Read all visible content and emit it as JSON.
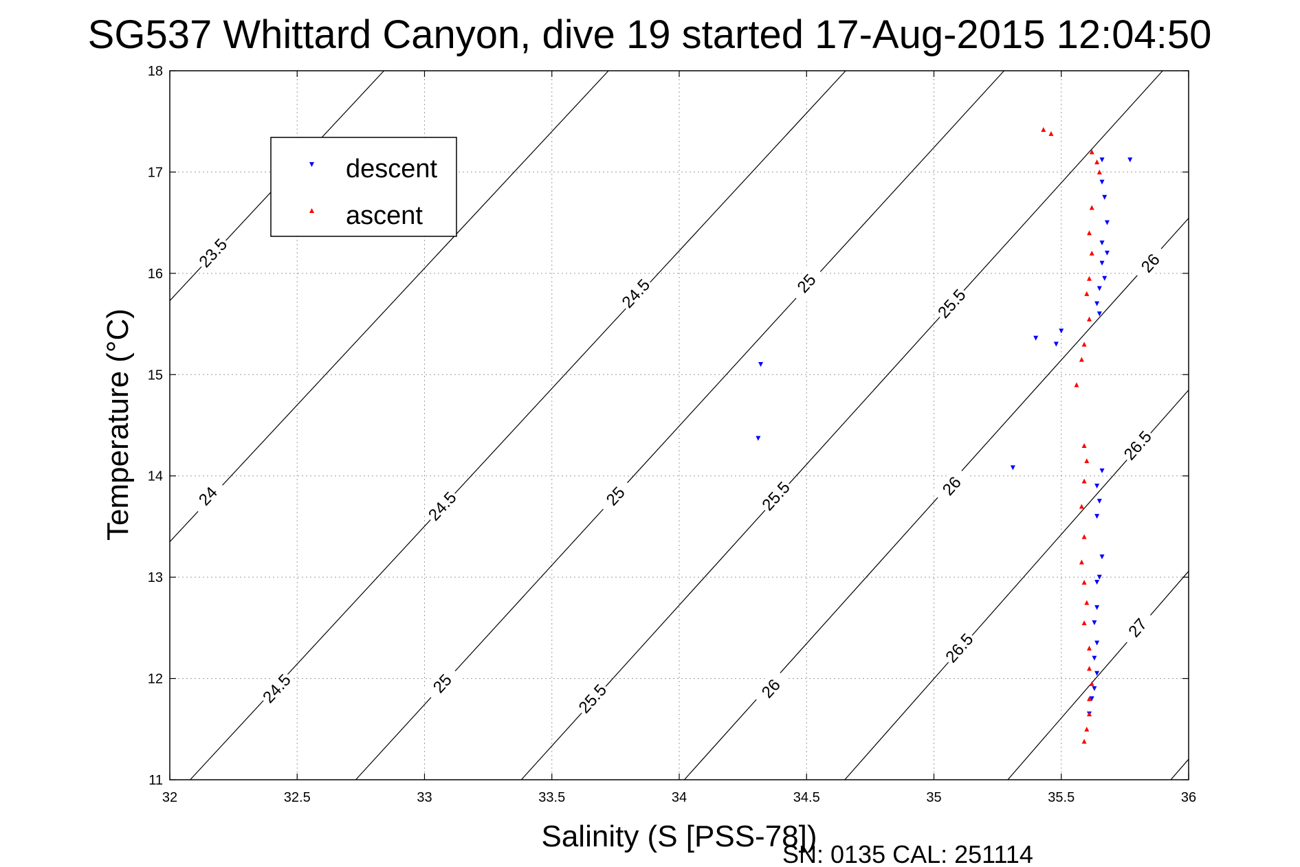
{
  "chart_data": {
    "type": "scatter",
    "title": "SG537 Whittard Canyon, dive 19 started 17-Aug-2015 12:04:50",
    "xlabel": "Salinity (S [PSS-78])",
    "ylabel": "Temperature (°C)",
    "xlim": [
      32,
      36
    ],
    "ylim": [
      11,
      18
    ],
    "xticks": [
      32,
      32.5,
      33,
      33.5,
      34,
      34.5,
      35,
      35.5,
      36
    ],
    "yticks": [
      11,
      12,
      13,
      14,
      15,
      16,
      17,
      18
    ],
    "xtick_labels": [
      "32",
      "32.5",
      "33",
      "33.5",
      "34",
      "34.5",
      "35",
      "35.5",
      "36"
    ],
    "ytick_labels": [
      "11",
      "12",
      "13",
      "14",
      "15",
      "16",
      "17",
      "18"
    ],
    "grid": true,
    "legend_position": "top-left",
    "density_contours": [
      {
        "value": "23.5",
        "slope": 2.7,
        "x0": 32.0,
        "y0": 15.73,
        "labels": [
          {
            "x": 32.17,
            "y": 16.2
          }
        ]
      },
      {
        "value": "24",
        "slope": 2.7,
        "x0": 32.0,
        "y0": 13.35,
        "labels": [
          {
            "x": 32.15,
            "y": 13.8
          }
        ]
      },
      {
        "value": "24.5",
        "slope": 2.72,
        "x0": 32.08,
        "y0": 11.0,
        "labels": [
          {
            "x": 32.42,
            "y": 11.9
          },
          {
            "x": 33.07,
            "y": 13.7
          },
          {
            "x": 33.83,
            "y": 15.8
          },
          {
            "x": 35.2,
            "y": 19.5
          }
        ]
      },
      {
        "value": "25",
        "slope": 2.75,
        "x0": 32.73,
        "y0": 11.0,
        "labels": [
          {
            "x": 33.07,
            "y": 11.95
          },
          {
            "x": 33.75,
            "y": 13.8
          },
          {
            "x": 34.5,
            "y": 15.9
          }
        ]
      },
      {
        "value": "25.5",
        "slope": 2.78,
        "x0": 33.38,
        "y0": 11.0,
        "labels": [
          {
            "x": 33.66,
            "y": 11.8
          },
          {
            "x": 34.38,
            "y": 13.8
          },
          {
            "x": 35.07,
            "y": 15.7
          }
        ]
      },
      {
        "value": "26",
        "slope": 2.8,
        "x0": 34.02,
        "y0": 11.0,
        "labels": [
          {
            "x": 34.36,
            "y": 11.9
          },
          {
            "x": 35.07,
            "y": 13.9
          },
          {
            "x": 35.85,
            "y": 16.1
          }
        ]
      },
      {
        "value": "26.5",
        "slope": 2.85,
        "x0": 34.65,
        "y0": 11.0,
        "labels": [
          {
            "x": 35.1,
            "y": 12.3
          },
          {
            "x": 35.8,
            "y": 14.3
          }
        ]
      },
      {
        "value": "27",
        "slope": 2.9,
        "x0": 35.29,
        "y0": 11.0,
        "labels": [
          {
            "x": 35.8,
            "y": 12.5
          }
        ]
      },
      {
        "value": "",
        "slope": 2.9,
        "x0": 35.93,
        "y0": 11.0,
        "labels": []
      }
    ],
    "series": [
      {
        "name": "descent",
        "color": "#0000ff",
        "marker": "triangle-down",
        "points": [
          [
            35.66,
            17.12
          ],
          [
            35.77,
            17.12
          ],
          [
            35.66,
            16.9
          ],
          [
            35.67,
            16.75
          ],
          [
            35.68,
            16.5
          ],
          [
            35.66,
            16.3
          ],
          [
            35.68,
            16.2
          ],
          [
            35.66,
            16.1
          ],
          [
            35.67,
            15.95
          ],
          [
            35.65,
            15.85
          ],
          [
            35.64,
            15.7
          ],
          [
            35.65,
            15.6
          ],
          [
            35.4,
            15.36
          ],
          [
            35.5,
            15.43
          ],
          [
            35.48,
            15.3
          ],
          [
            34.32,
            15.1
          ],
          [
            34.31,
            14.37
          ],
          [
            35.31,
            14.08
          ],
          [
            35.66,
            14.05
          ],
          [
            35.64,
            13.9
          ],
          [
            35.65,
            13.75
          ],
          [
            35.64,
            13.6
          ],
          [
            35.66,
            13.2
          ],
          [
            35.65,
            13.0
          ],
          [
            35.64,
            12.95
          ],
          [
            35.64,
            12.7
          ],
          [
            35.63,
            12.55
          ],
          [
            35.64,
            12.35
          ],
          [
            35.63,
            12.2
          ],
          [
            35.64,
            12.05
          ],
          [
            35.63,
            11.9
          ],
          [
            35.62,
            11.8
          ],
          [
            35.61,
            11.65
          ]
        ]
      },
      {
        "name": "ascent",
        "color": "#ff0000",
        "marker": "triangle-up",
        "points": [
          [
            35.43,
            17.42
          ],
          [
            35.46,
            17.38
          ],
          [
            35.62,
            17.2
          ],
          [
            35.64,
            17.1
          ],
          [
            35.65,
            17.0
          ],
          [
            35.62,
            16.65
          ],
          [
            35.61,
            16.4
          ],
          [
            35.62,
            16.2
          ],
          [
            35.61,
            15.95
          ],
          [
            35.6,
            15.8
          ],
          [
            35.61,
            15.55
          ],
          [
            35.59,
            15.3
          ],
          [
            35.58,
            15.15
          ],
          [
            35.56,
            14.9
          ],
          [
            35.59,
            14.3
          ],
          [
            35.6,
            14.15
          ],
          [
            35.59,
            13.95
          ],
          [
            35.58,
            13.7
          ],
          [
            35.59,
            13.4
          ],
          [
            35.58,
            13.15
          ],
          [
            35.59,
            12.95
          ],
          [
            35.6,
            12.75
          ],
          [
            35.59,
            12.55
          ],
          [
            35.61,
            12.3
          ],
          [
            35.61,
            12.1
          ],
          [
            35.62,
            11.95
          ],
          [
            35.61,
            11.8
          ],
          [
            35.61,
            11.65
          ],
          [
            35.6,
            11.5
          ],
          [
            35.59,
            11.38
          ]
        ]
      }
    ]
  },
  "footer": {
    "text": "SN: 0135  CAL: 251114"
  }
}
